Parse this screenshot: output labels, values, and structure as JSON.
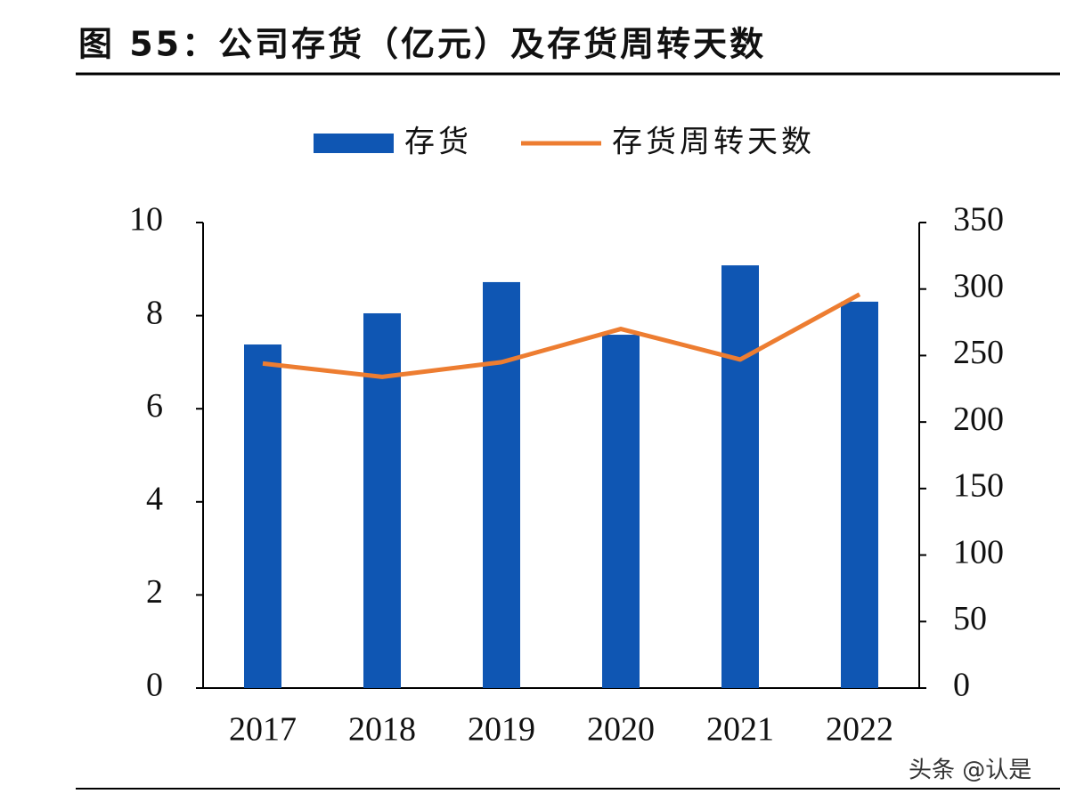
{
  "chart_data": {
    "type": "bar",
    "title": "图 55：公司存货（亿元）及存货周转天数",
    "categories": [
      "2017",
      "2018",
      "2019",
      "2020",
      "2021",
      "2022"
    ],
    "series": [
      {
        "name": "存货",
        "color": "#0f56b3",
        "values": [
          7.38,
          8.05,
          8.72,
          7.59,
          9.08,
          8.3
        ]
      },
      {
        "name": "存货周转天数",
        "color": "#ed7d31",
        "type": "line",
        "axis": "y2",
        "values": [
          244,
          234,
          245,
          270,
          247,
          296
        ]
      }
    ],
    "ylim": [
      0,
      10
    ],
    "yticks": [
      0,
      2,
      4,
      6,
      8,
      10
    ],
    "y2lim": [
      0,
      350
    ],
    "y2ticks": [
      0,
      50,
      100,
      150,
      200,
      250,
      300,
      350
    ],
    "legend": "top",
    "grid": false
  },
  "watermark": "头条 @认是"
}
